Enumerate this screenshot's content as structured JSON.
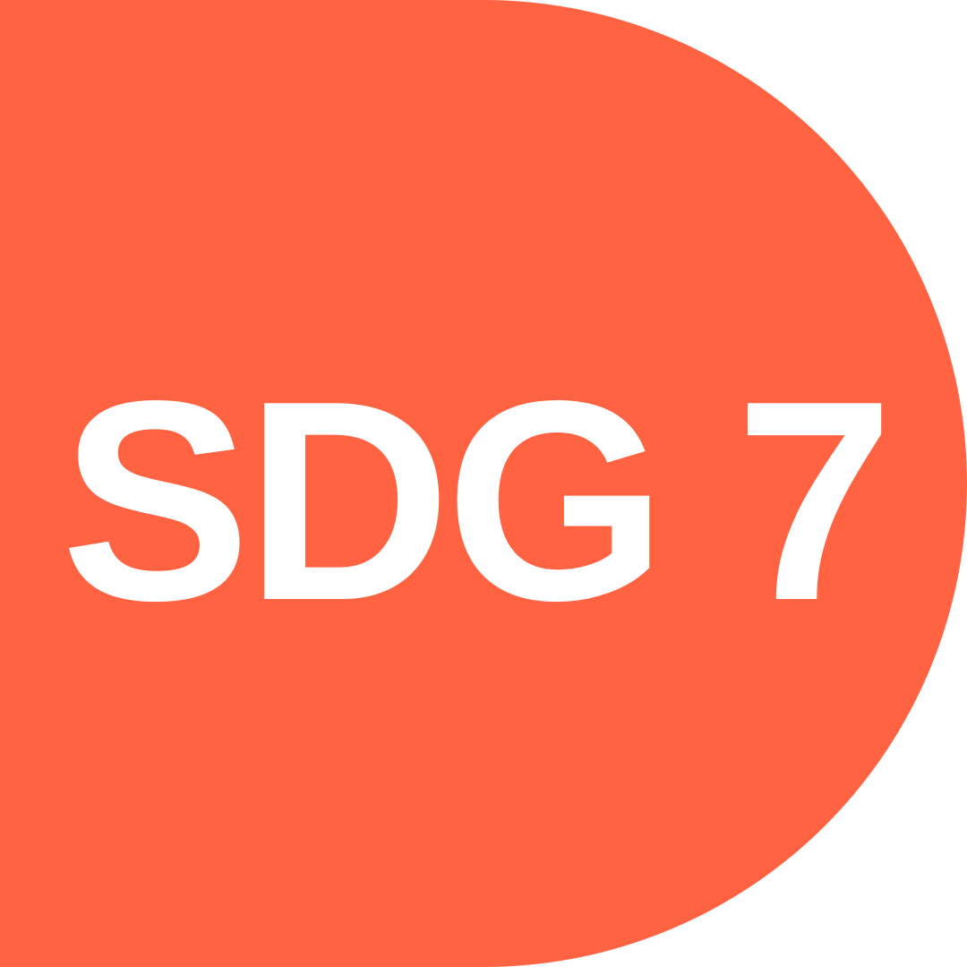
{
  "badge": {
    "label": "SDG 7",
    "colors": {
      "background": "#ffffff",
      "fill": "#FF6342",
      "text": "#ffffff"
    }
  }
}
